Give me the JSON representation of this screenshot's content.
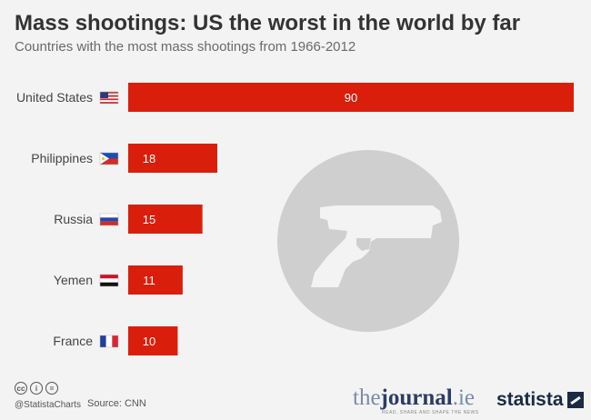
{
  "title": "Mass shootings: US the worst in the world by far",
  "subtitle": "Countries with the most mass shootings from 1966-2012",
  "chart_data": {
    "type": "bar",
    "orientation": "horizontal",
    "categories": [
      "United States",
      "Philippines",
      "Russia",
      "Yemen",
      "France"
    ],
    "values": [
      90,
      18,
      15,
      11,
      10
    ],
    "title": "Mass shootings: US the worst in the world by far",
    "subtitle": "Countries with the most mass shootings from 1966-2012",
    "xlabel": "",
    "ylabel": "",
    "xlim": [
      0,
      90
    ],
    "bar_color": "#d91e0c",
    "grid": false,
    "legend": "none"
  },
  "footer": {
    "cc_icons": [
      "cc",
      "i",
      "="
    ],
    "handle": "@StatistaCharts",
    "source": "Source: CNN"
  },
  "branding": {
    "journal_the": "the",
    "journal_main": "journal",
    "journal_ie": ".ie",
    "journal_tagline": "READ, SHARE AND SHAPE THE NEWS",
    "statista": "statista"
  },
  "colors": {
    "bar": "#d91e0c",
    "background": "#f3f3f3",
    "title": "#333333",
    "pistol_circle": "#cfcfcf"
  }
}
